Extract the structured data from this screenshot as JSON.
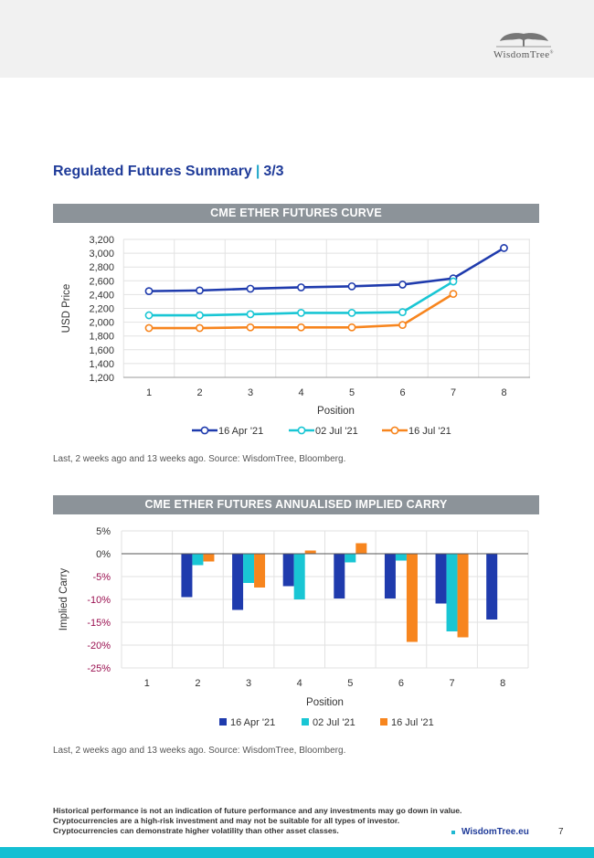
{
  "header": {
    "logo_name": "WisdomTree",
    "logo_mark": "®"
  },
  "page": {
    "title": "Regulated Futures Summary",
    "title_sep": "|",
    "title_page": "3/3",
    "page_number": "7",
    "site": "WisdomTree.eu",
    "disclaimer": [
      "Historical performance is not an indication of future performance and any investments may go down in value.",
      "Cryptocurrencies are a high-risk investment and may not be suitable for all types of investor.",
      "Cryptocurrencies can demonstrate higher volatility than other asset classes."
    ]
  },
  "colors": {
    "series1": "#1f3bad",
    "series2": "#19c6d4",
    "series3": "#f7851e",
    "brand_blue": "#1f3b99",
    "bar_grey": "#8c9399",
    "negative_axis": "#9a1050"
  },
  "chart_data": [
    {
      "type": "line",
      "title": "CME ETHER FUTURES CURVE",
      "xlabel": "Position",
      "ylabel": "USD Price",
      "x": [
        1,
        2,
        3,
        4,
        5,
        6,
        7,
        8
      ],
      "xtick_labels": [
        "1",
        "2",
        "3",
        "4",
        "5",
        "6",
        "7",
        "8"
      ],
      "ylim": [
        1200,
        3200
      ],
      "yticks": [
        1200,
        1400,
        1600,
        1800,
        2000,
        2200,
        2400,
        2600,
        2800,
        3000,
        3200
      ],
      "ytick_labels": [
        "1,200",
        "1,400",
        "1,600",
        "1,800",
        "2,000",
        "2,200",
        "2,400",
        "2,600",
        "2,800",
        "3,000",
        "3,200"
      ],
      "grid": true,
      "legend": "bottom",
      "series": [
        {
          "name": "16 Apr '21",
          "values": [
            2450,
            2460,
            2485,
            2505,
            2520,
            2545,
            2635,
            3075
          ]
        },
        {
          "name": "02 Jul '21",
          "values": [
            2100,
            2100,
            2115,
            2135,
            2135,
            2145,
            2590,
            null
          ]
        },
        {
          "name": "16 Jul '21",
          "values": [
            1915,
            1915,
            1925,
            1925,
            1925,
            1960,
            2410,
            null
          ]
        }
      ],
      "note": "Last, 2 weeks ago and 13 weeks ago. Source: WisdomTree, Bloomberg."
    },
    {
      "type": "bar",
      "title": "CME ETHER FUTURES ANNUALISED IMPLIED CARRY",
      "xlabel": "Position",
      "ylabel": "Implied Carry",
      "categories": [
        "1",
        "2",
        "3",
        "4",
        "5",
        "6",
        "7",
        "8"
      ],
      "ylim": [
        -25,
        5
      ],
      "yticks": [
        5,
        0,
        -5,
        -10,
        -15,
        -20,
        -25
      ],
      "ytick_labels": [
        "5%",
        "0%",
        "-5%",
        "-10%",
        "-15%",
        "-20%",
        "-25%"
      ],
      "grid": true,
      "legend": "bottom",
      "series": [
        {
          "name": "16 Apr '21",
          "values": [
            null,
            -9.5,
            -12.3,
            -7.1,
            -9.8,
            -9.8,
            -10.9,
            -14.4
          ]
        },
        {
          "name": "02 Jul '21",
          "values": [
            null,
            -2.5,
            -6.4,
            -10.0,
            -1.9,
            -1.5,
            -17.0,
            null
          ]
        },
        {
          "name": "16 Jul '21",
          "values": [
            null,
            -1.7,
            -7.4,
            0.7,
            2.3,
            -19.3,
            -18.3,
            null
          ]
        }
      ],
      "note": "Last, 2 weeks ago and 13 weeks ago. Source: WisdomTree, Bloomberg."
    }
  ]
}
